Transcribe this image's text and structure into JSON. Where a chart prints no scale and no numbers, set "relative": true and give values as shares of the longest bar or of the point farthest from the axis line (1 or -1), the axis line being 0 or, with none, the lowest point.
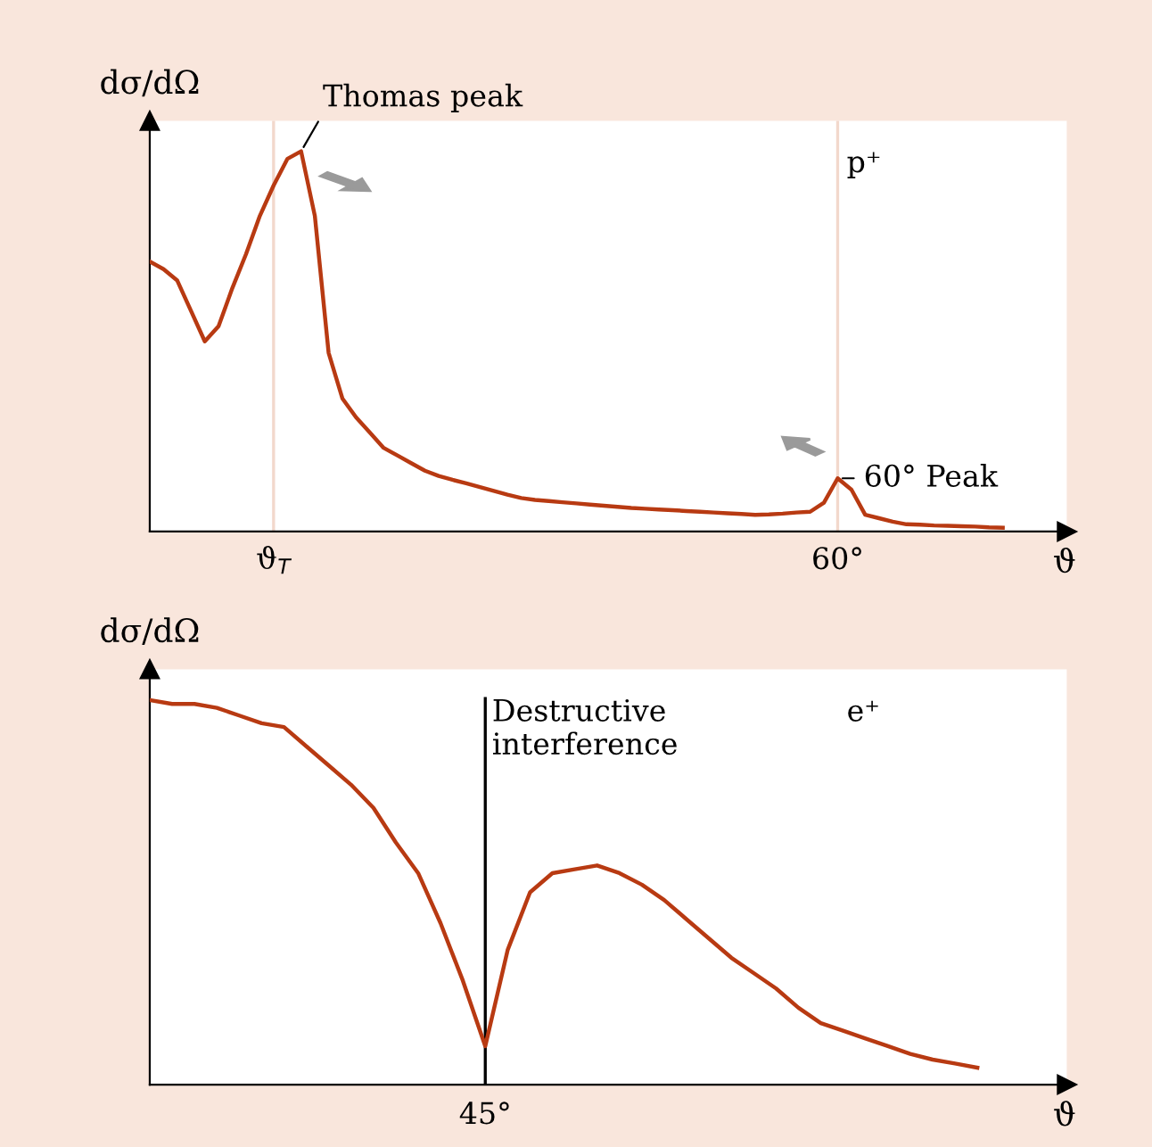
{
  "chart_data": [
    {
      "type": "line",
      "relative": true,
      "xlabel": "ϑ",
      "ylabel": "dσ/dΩ",
      "categories": [
        null,
        null,
        null,
        null,
        null,
        null,
        null,
        null,
        null,
        "ϑ$_{T}$",
        null,
        null,
        null,
        null,
        null,
        null,
        null,
        null,
        null,
        null,
        null,
        null,
        null,
        null,
        null,
        null,
        null,
        null,
        null,
        null,
        null,
        null,
        null,
        null,
        null,
        null,
        null,
        null,
        null,
        null,
        null,
        null,
        null,
        null,
        null,
        null,
        null,
        null,
        null,
        null,
        "60°",
        null,
        null,
        null,
        null,
        null,
        null,
        null,
        null,
        null,
        null,
        null,
        null
      ],
      "series": [
        {
          "color": "#b83a12",
          "values": [
            0.71,
            0.69,
            0.66,
            0.58,
            0.5,
            0.54,
            0.64,
            0.73,
            0.83,
            0.91,
            0.98,
            1.0,
            0.83,
            0.47,
            0.35,
            0.3,
            0.26,
            0.22,
            0.2,
            0.18,
            0.16,
            0.146,
            0.136,
            0.127,
            0.117,
            0.107,
            0.097,
            0.088,
            0.083,
            0.08,
            0.077,
            0.074,
            0.071,
            0.068,
            0.065,
            0.062,
            0.06,
            0.058,
            0.056,
            0.054,
            0.052,
            0.05,
            0.048,
            0.046,
            0.044,
            0.045,
            0.047,
            0.05,
            0.052,
            0.076,
            0.14,
            0.11,
            0.044,
            0.035,
            0.026,
            0.019,
            0.018,
            0.016,
            0.015,
            0.014,
            0.013,
            0.011,
            0.01
          ]
        }
      ],
      "ref_lines": [
        {
          "axis": "x",
          "value": "ϑ$_{T}$",
          "color": "#f2d8cc"
        },
        {
          "axis": "x",
          "value": "60°",
          "color": "#f2d8cc"
        }
      ],
      "annotations": [
        "Thomas peak",
        {
          "text": "60° Peak",
          "x": "60°",
          "y": 0.14
        },
        "p⁺"
      ],
      "grid": false,
      "marker": "none",
      "line_style": "solid"
    },
    {
      "type": "line",
      "relative": true,
      "xlabel": "ϑ",
      "ylabel": "dσ/dΩ",
      "categories": [
        null,
        null,
        null,
        null,
        null,
        null,
        null,
        null,
        null,
        null,
        null,
        null,
        null,
        null,
        null,
        null,
        null,
        null,
        null,
        null,
        null,
        null,
        null,
        null,
        null,
        null,
        null,
        null,
        null,
        null,
        null,
        null,
        null,
        null,
        null,
        null,
        null,
        null
      ],
      "series": [
        {
          "color": "#b83a12",
          "values": [
            1.0,
            0.99,
            0.99,
            0.98,
            0.96,
            0.94,
            0.93,
            0.88,
            0.83,
            0.78,
            0.72,
            0.63,
            0.55,
            0.42,
            0.27,
            0.1,
            0.35,
            0.5,
            0.55,
            0.56,
            0.57,
            0.55,
            0.52,
            0.48,
            0.43,
            0.38,
            0.33,
            0.29,
            0.25,
            0.2,
            0.16,
            0.14,
            0.12,
            0.1,
            0.08,
            0.065,
            0.055,
            0.044
          ]
        }
      ],
      "annotations": [
        "45°",
        "Destructive\ninterference",
        "e⁺"
      ],
      "grid": false,
      "marker": "none",
      "line_style": "solid"
    }
  ]
}
